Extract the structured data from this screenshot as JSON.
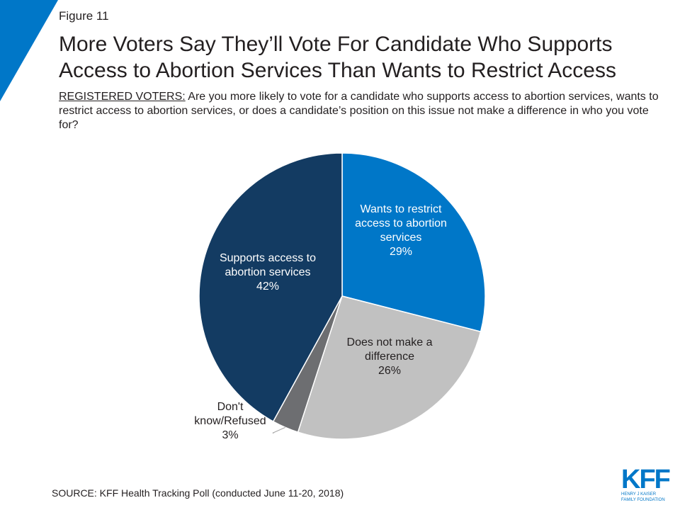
{
  "figure_label": "Figure 11",
  "title_lines": [
    "More Voters Say They’ll Vote For Candidate Who Supports",
    "Access to Abortion Services Than Wants to Restrict Access"
  ],
  "subtitle": {
    "lead": "REGISTERED VOTERS:",
    "text": " Are you more likely to vote for a candidate who supports access to abortion services, wants to restrict access to abortion services, or does a candidate’s position on this issue not make a difference in who you vote for?"
  },
  "source": "SOURCE: KFF Health Tracking Poll (conducted June 11-20, 2018)",
  "logo": {
    "word": "KFF",
    "line1": "HENRY J KAISER",
    "line2": "FAMILY FOUNDATION"
  },
  "colors": {
    "accent": "#0077c8"
  },
  "chart_data": {
    "type": "pie",
    "title": "More Voters Say They’ll Vote For Candidate Who Supports Access to Abortion Services Than Wants to Restrict Access",
    "slices": [
      {
        "label_lines": [
          "Wants to restrict",
          "access to abortion",
          "services"
        ],
        "value": 29,
        "value_label": "29%",
        "color": "#0077c8",
        "text_color": "#ffffff"
      },
      {
        "label_lines": [
          "Does not make a",
          "difference"
        ],
        "value": 26,
        "value_label": "26%",
        "color": "#c1c1c1",
        "text_color": "#231f20"
      },
      {
        "label_lines": [
          "Don't",
          "know/Refused"
        ],
        "value": 3,
        "value_label": "3%",
        "color": "#6d6e71",
        "text_color": "#231f20"
      },
      {
        "label_lines": [
          "Supports access to",
          "abortion services"
        ],
        "value": 42,
        "value_label": "42%",
        "color": "#133b62",
        "text_color": "#ffffff"
      }
    ]
  }
}
